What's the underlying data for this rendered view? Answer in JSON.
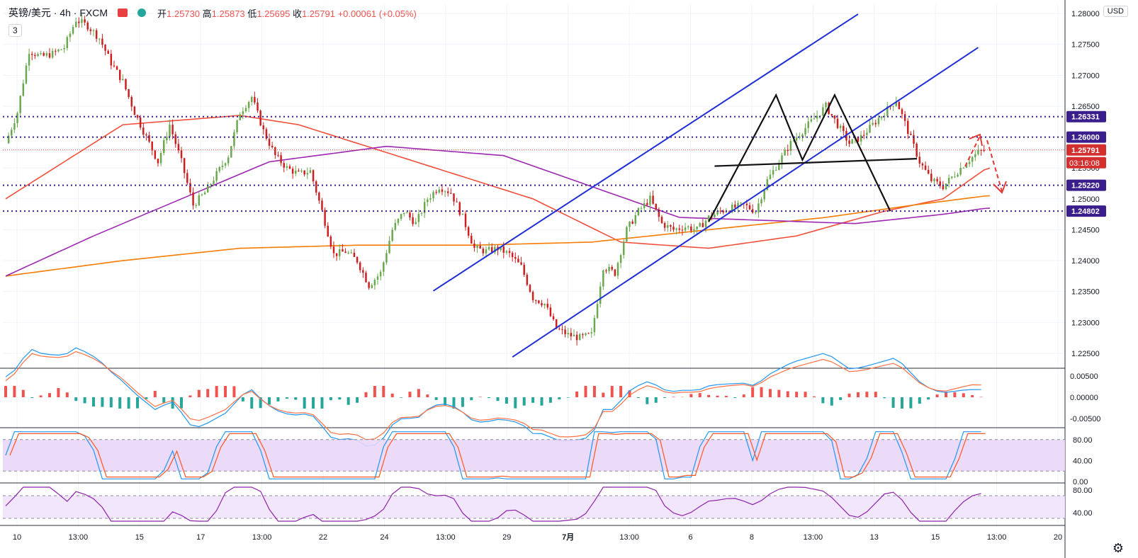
{
  "header": {
    "symbol": "英镑/美元 · 4h · FXCM",
    "open_label": "开",
    "open": "1.25730",
    "high_label": "高",
    "high": "1.25873",
    "low_label": "低",
    "low": "1.25695",
    "close_label": "收",
    "close": "1.25791",
    "change": "+0.00061 (+0.05%)"
  },
  "indicator_count": "3",
  "currency_badge": "USD",
  "colors": {
    "up": "#6aa84f",
    "down": "#cc1f1f",
    "ma_fast": "#f0503c",
    "ma_mid": "#f57c00",
    "ma_slow": "#9c27b0",
    "channel": "#1f2fd6",
    "level": "#3a1f8c",
    "pattern": "#111111",
    "arrow": "#e53935"
  },
  "chart_data": {
    "type": "candlestick",
    "symbol": "GBP/USD",
    "interval": "4h",
    "ylim": [
      1.2235,
      1.2815
    ],
    "y_ticks": [
      "1.22500",
      "1.23000",
      "1.23500",
      "1.24000",
      "1.24500",
      "1.25000",
      "1.25500",
      "1.26000",
      "1.26500",
      "1.27000",
      "1.27500",
      "1.28000"
    ],
    "x_ticks": [
      "10",
      "13:00",
      "15",
      "17",
      "13:00",
      "22",
      "24",
      "13:00",
      "29",
      "7月",
      "13:00",
      "6",
      "8",
      "13:00",
      "13",
      "15",
      "13:00",
      "20"
    ],
    "levels": [
      {
        "value": 1.26331,
        "label": "1.26331"
      },
      {
        "value": 1.26,
        "label": "1.26000"
      },
      {
        "value": 1.2522,
        "label": "1.25220"
      },
      {
        "value": 1.24802,
        "label": "1.24802"
      }
    ],
    "last_price": {
      "value": 1.25791,
      "label": "1.25791",
      "countdown": "03:16:08"
    },
    "close_path": [
      [
        0,
        1.259
      ],
      [
        4,
        1.264
      ],
      [
        8,
        1.274
      ],
      [
        12,
        1.273
      ],
      [
        16,
        1.2735
      ],
      [
        20,
        1.2745
      ],
      [
        24,
        1.279
      ],
      [
        28,
        1.278
      ],
      [
        32,
        1.276
      ],
      [
        36,
        1.272
      ],
      [
        40,
        1.269
      ],
      [
        44,
        1.264
      ],
      [
        48,
        1.26
      ],
      [
        52,
        1.256
      ],
      [
        56,
        1.262
      ],
      [
        60,
        1.256
      ],
      [
        64,
        1.249
      ],
      [
        68,
        1.251
      ],
      [
        72,
        1.254
      ],
      [
        76,
        1.257
      ],
      [
        80,
        1.264
      ],
      [
        84,
        1.2665
      ],
      [
        88,
        1.261
      ],
      [
        92,
        1.257
      ],
      [
        96,
        1.255
      ],
      [
        100,
        1.254
      ],
      [
        104,
        1.2545
      ],
      [
        108,
        1.248
      ],
      [
        112,
        1.241
      ],
      [
        116,
        1.2415
      ],
      [
        120,
        1.24
      ],
      [
        124,
        1.236
      ],
      [
        128,
        1.238
      ],
      [
        132,
        1.245
      ],
      [
        136,
        1.248
      ],
      [
        140,
        1.246
      ],
      [
        144,
        1.25
      ],
      [
        148,
        1.252
      ],
      [
        152,
        1.251
      ],
      [
        156,
        1.247
      ],
      [
        160,
        1.242
      ],
      [
        164,
        1.2415
      ],
      [
        168,
        1.242
      ],
      [
        172,
        1.241
      ],
      [
        176,
        1.239
      ],
      [
        180,
        1.234
      ],
      [
        184,
        1.233
      ],
      [
        188,
        1.229
      ],
      [
        192,
        1.228
      ],
      [
        196,
        1.2275
      ],
      [
        200,
        1.228
      ],
      [
        204,
        1.239
      ],
      [
        208,
        1.238
      ],
      [
        212,
        1.245
      ],
      [
        216,
        1.248
      ],
      [
        220,
        1.25
      ],
      [
        224,
        1.246
      ],
      [
        228,
        1.245
      ],
      [
        232,
        1.2455
      ],
      [
        236,
        1.245
      ],
      [
        240,
        1.247
      ],
      [
        244,
        1.248
      ],
      [
        248,
        1.2485
      ],
      [
        252,
        1.249
      ],
      [
        256,
        1.248
      ],
      [
        260,
        1.253
      ],
      [
        264,
        1.256
      ],
      [
        268,
        1.259
      ],
      [
        272,
        1.261
      ],
      [
        276,
        1.263
      ],
      [
        280,
        1.265
      ],
      [
        284,
        1.262
      ],
      [
        288,
        1.259
      ],
      [
        292,
        1.26
      ],
      [
        296,
        1.262
      ],
      [
        300,
        1.264
      ],
      [
        304,
        1.266
      ],
      [
        308,
        1.261
      ],
      [
        312,
        1.256
      ],
      [
        316,
        1.253
      ],
      [
        320,
        1.252
      ],
      [
        324,
        1.254
      ],
      [
        328,
        1.256
      ],
      [
        332,
        1.2575
      ],
      [
        334,
        1.2579
      ]
    ],
    "series": [
      {
        "name": "",
        "values": [
          [
            0,
            1.25
          ],
          [
            40,
            1.262
          ],
          [
            80,
            1.2635
          ],
          [
            100,
            1.262
          ],
          [
            140,
            1.256
          ],
          [
            180,
            1.25
          ],
          [
            210,
            1.243
          ],
          [
            240,
            1.242
          ],
          [
            270,
            1.244
          ],
          [
            300,
            1.248
          ],
          [
            320,
            1.25
          ],
          [
            335,
            1.255
          ]
        ]
      },
      {
        "name": "",
        "values": [
          [
            0,
            1.2375
          ],
          [
            40,
            1.24
          ],
          [
            80,
            1.242
          ],
          [
            120,
            1.2425
          ],
          [
            160,
            1.2425
          ],
          [
            200,
            1.243
          ],
          [
            240,
            1.245
          ],
          [
            280,
            1.247
          ],
          [
            310,
            1.249
          ],
          [
            335,
            1.2505
          ]
        ]
      },
      {
        "name": "",
        "values": [
          [
            0,
            1.2375
          ],
          [
            30,
            1.244
          ],
          [
            60,
            1.25
          ],
          [
            90,
            1.256
          ],
          [
            130,
            1.2585
          ],
          [
            170,
            1.257
          ],
          [
            200,
            1.252
          ],
          [
            230,
            1.247
          ],
          [
            260,
            1.2465
          ],
          [
            290,
            1.246
          ],
          [
            320,
            1.2475
          ],
          [
            335,
            1.2485
          ]
        ]
      }
    ],
    "annotations": {
      "channel_lines": [
        [
          [
            146,
            1.2351
          ],
          [
            291,
            1.2799
          ]
        ],
        [
          [
            173,
            1.2244
          ],
          [
            332,
            1.2745
          ]
        ]
      ],
      "double_top": [
        [
          240,
          1.2463
        ],
        [
          263,
          1.2668
        ],
        [
          272,
          1.2563
        ],
        [
          283,
          1.2668
        ],
        [
          302,
          1.248
        ]
      ],
      "neckline": [
        [
          242,
          1.2553
        ],
        [
          311,
          1.2565
        ]
      ]
    },
    "macd": {
      "ylim": [
        -0.007,
        0.007
      ],
      "ticks": [
        "0.00500",
        "0.00000",
        "-0.00500"
      ]
    },
    "stoch": {
      "ylim": [
        0,
        100
      ],
      "ticks": [
        "80.00",
        "40.00",
        "0.00"
      ]
    },
    "rsi": {
      "ylim": [
        20,
        90
      ],
      "ticks": [
        "80.00",
        "40.00"
      ]
    }
  }
}
